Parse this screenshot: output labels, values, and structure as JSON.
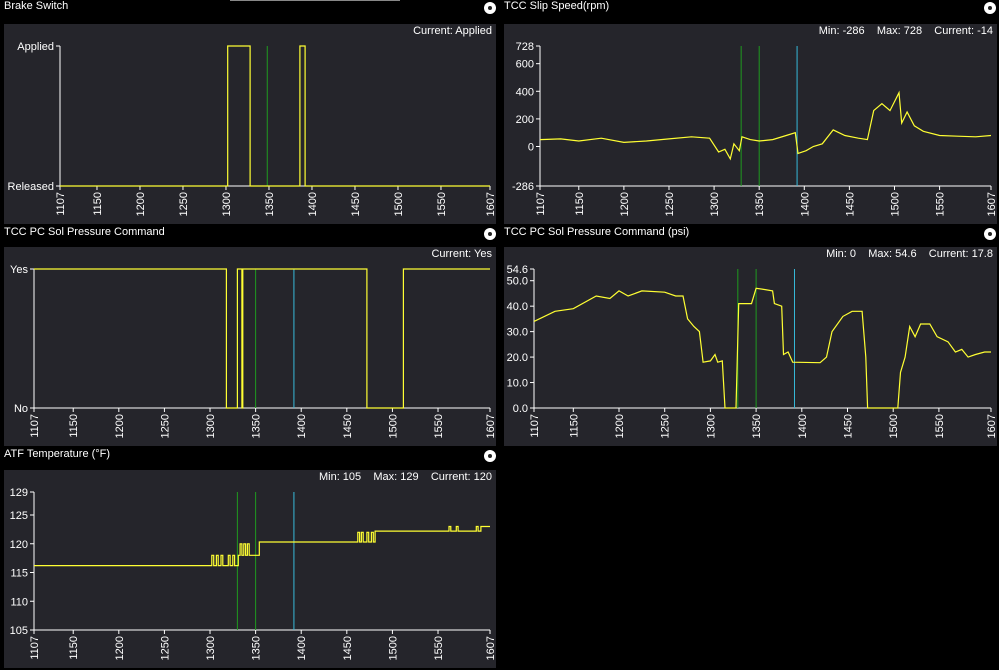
{
  "colors": {
    "panel_bg": "#25252b",
    "series": "#ffff33",
    "marker_green": "#1f9a1f",
    "marker_cyan": "#37b9d9",
    "axis": "#ffffff"
  },
  "panels": {
    "brake": {
      "title": "Brake Switch",
      "stats": "Current: Applied",
      "button_icon": "circle-button-icon"
    },
    "slip": {
      "title": "TCC Slip Speed(rpm)",
      "stats": "Min: -286    Max: 728    Current: -14",
      "button_icon": "circle-button-icon"
    },
    "pc_cmd": {
      "title": "TCC PC Sol Pressure Command",
      "stats": "Current: Yes",
      "button_icon": "circle-button-icon"
    },
    "pc_psi": {
      "title": "TCC PC Sol Pressure Command (psi)",
      "stats": "Min: 0    Max: 54.6    Current: 17.8",
      "button_icon": "circle-button-icon"
    },
    "atf": {
      "title": "ATF Temperature (°F)",
      "stats": "Min: 105    Max: 129    Current: 120",
      "button_icon": "circle-button-icon"
    }
  },
  "chart_data": [
    {
      "id": "brake",
      "type": "line",
      "title": "Brake Switch",
      "xlim": [
        1107,
        1607
      ],
      "x_ticks": [
        "1107",
        "1150",
        "1200",
        "1250",
        "1300",
        "1350",
        "1400",
        "1450",
        "1500",
        "1550",
        "1607"
      ],
      "y_ticks": [
        {
          "label": "Applied",
          "v": 1
        },
        {
          "label": "Released",
          "v": 0
        }
      ],
      "ylim": [
        0,
        1
      ],
      "markers": [
        {
          "x": 1348,
          "color": "green"
        }
      ],
      "series": [
        {
          "step": true,
          "points": [
            [
              1107,
              0
            ],
            [
              1300,
              0
            ],
            [
              1302,
              1
            ],
            [
              1326,
              1
            ],
            [
              1328,
              0
            ],
            [
              1384,
              0
            ],
            [
              1386,
              1
            ],
            [
              1390,
              1
            ],
            [
              1392,
              0
            ],
            [
              1607,
              0
            ]
          ]
        }
      ]
    },
    {
      "id": "slip",
      "type": "line",
      "title": "TCC Slip Speed(rpm)",
      "xlim": [
        1107,
        1607
      ],
      "x_ticks": [
        "1107",
        "1150",
        "1200",
        "1250",
        "1300",
        "1350",
        "1400",
        "1450",
        "1500",
        "1550",
        "1607"
      ],
      "y_ticks": [
        {
          "label": "728",
          "v": 728
        },
        {
          "label": "600",
          "v": 600
        },
        {
          "label": "400",
          "v": 400
        },
        {
          "label": "200",
          "v": 200
        },
        {
          "label": "0",
          "v": 0
        },
        {
          "label": "-286",
          "v": -286
        }
      ],
      "ylim": [
        -286,
        728
      ],
      "markers": [
        {
          "x": 1330,
          "color": "green"
        },
        {
          "x": 1350,
          "color": "green"
        },
        {
          "x": 1392,
          "color": "cyan"
        }
      ],
      "series": [
        {
          "points": [
            [
              1107,
              50
            ],
            [
              1130,
              55
            ],
            [
              1150,
              40
            ],
            [
              1175,
              60
            ],
            [
              1200,
              30
            ],
            [
              1225,
              40
            ],
            [
              1250,
              55
            ],
            [
              1275,
              70
            ],
            [
              1295,
              60
            ],
            [
              1305,
              -40
            ],
            [
              1312,
              -20
            ],
            [
              1318,
              -90
            ],
            [
              1322,
              20
            ],
            [
              1328,
              -30
            ],
            [
              1331,
              70
            ],
            [
              1340,
              50
            ],
            [
              1350,
              40
            ],
            [
              1365,
              50
            ],
            [
              1380,
              80
            ],
            [
              1390,
              100
            ],
            [
              1393,
              -50
            ],
            [
              1402,
              -30
            ],
            [
              1410,
              0
            ],
            [
              1420,
              20
            ],
            [
              1432,
              120
            ],
            [
              1445,
              80
            ],
            [
              1460,
              60
            ],
            [
              1470,
              50
            ],
            [
              1477,
              260
            ],
            [
              1486,
              310
            ],
            [
              1495,
              260
            ],
            [
              1505,
              390
            ],
            [
              1508,
              170
            ],
            [
              1514,
              250
            ],
            [
              1522,
              150
            ],
            [
              1532,
              110
            ],
            [
              1550,
              80
            ],
            [
              1570,
              75
            ],
            [
              1590,
              70
            ],
            [
              1607,
              80
            ]
          ]
        }
      ]
    },
    {
      "id": "pc_cmd",
      "type": "line",
      "title": "TCC PC Sol Pressure Command",
      "xlim": [
        1107,
        1607
      ],
      "x_ticks": [
        "1107",
        "1150",
        "1200",
        "1250",
        "1300",
        "1350",
        "1400",
        "1450",
        "1500",
        "1550",
        "1607"
      ],
      "y_ticks": [
        {
          "label": "Yes",
          "v": 1
        },
        {
          "label": "No",
          "v": 0
        }
      ],
      "ylim": [
        0,
        1
      ],
      "markers": [
        {
          "x": 1330,
          "color": "green"
        },
        {
          "x": 1350,
          "color": "green"
        },
        {
          "x": 1392,
          "color": "cyan"
        }
      ],
      "series": [
        {
          "step": true,
          "points": [
            [
              1107,
              1
            ],
            [
              1316,
              1
            ],
            [
              1318,
              0
            ],
            [
              1328,
              0
            ],
            [
              1330,
              1
            ],
            [
              1333,
              1
            ],
            [
              1335,
              0
            ],
            [
              1336,
              1
            ],
            [
              1469,
              1
            ],
            [
              1472,
              0
            ],
            [
              1508,
              0
            ],
            [
              1512,
              1
            ],
            [
              1607,
              1
            ]
          ]
        }
      ]
    },
    {
      "id": "pc_psi",
      "type": "line",
      "title": "TCC PC Sol Pressure Command (psi)",
      "xlim": [
        1107,
        1607
      ],
      "x_ticks": [
        "1107",
        "1150",
        "1200",
        "1250",
        "1300",
        "1350",
        "1400",
        "1450",
        "1500",
        "1550",
        "1607"
      ],
      "y_ticks": [
        {
          "label": "54.6",
          "v": 54.6
        },
        {
          "label": "50.0",
          "v": 50
        },
        {
          "label": "40.0",
          "v": 40
        },
        {
          "label": "30.0",
          "v": 30
        },
        {
          "label": "20.0",
          "v": 20
        },
        {
          "label": "10.0",
          "v": 10
        },
        {
          "label": "0.0",
          "v": 0
        }
      ],
      "ylim": [
        0,
        54.6
      ],
      "markers": [
        {
          "x": 1330,
          "color": "green"
        },
        {
          "x": 1350,
          "color": "green"
        },
        {
          "x": 1392,
          "color": "cyan"
        }
      ],
      "series": [
        {
          "points": [
            [
              1107,
              34
            ],
            [
              1130,
              38
            ],
            [
              1150,
              39
            ],
            [
              1175,
              44
            ],
            [
              1190,
              43
            ],
            [
              1200,
              46
            ],
            [
              1210,
              44
            ],
            [
              1225,
              46
            ],
            [
              1250,
              45.5
            ],
            [
              1262,
              44
            ],
            [
              1270,
              44
            ],
            [
              1275,
              35
            ],
            [
              1282,
              32
            ],
            [
              1288,
              30
            ],
            [
              1292,
              18
            ],
            [
              1300,
              18.5
            ],
            [
              1305,
              21
            ],
            [
              1308,
              18
            ],
            [
              1313,
              18.5
            ],
            [
              1316,
              0
            ],
            [
              1328,
              0
            ],
            [
              1331,
              41
            ],
            [
              1340,
              41
            ],
            [
              1345,
              41
            ],
            [
              1350,
              47
            ],
            [
              1360,
              46.5
            ],
            [
              1368,
              46
            ],
            [
              1370,
              41
            ],
            [
              1378,
              40
            ],
            [
              1380,
              21
            ],
            [
              1385,
              22
            ],
            [
              1390,
              18
            ],
            [
              1420,
              17.8
            ],
            [
              1427,
              20
            ],
            [
              1433,
              30
            ],
            [
              1445,
              36
            ],
            [
              1455,
              38
            ],
            [
              1466,
              38
            ],
            [
              1470,
              20
            ],
            [
              1472,
              0
            ],
            [
              1505,
              0
            ],
            [
              1508,
              14
            ],
            [
              1513,
              20
            ],
            [
              1518,
              32
            ],
            [
              1524,
              28
            ],
            [
              1530,
              33
            ],
            [
              1540,
              33
            ],
            [
              1548,
              28
            ],
            [
              1560,
              26
            ],
            [
              1568,
              22
            ],
            [
              1575,
              23
            ],
            [
              1582,
              20
            ],
            [
              1590,
              21
            ],
            [
              1600,
              22
            ],
            [
              1607,
              22
            ]
          ]
        }
      ]
    },
    {
      "id": "atf",
      "type": "line",
      "title": "ATF Temperature (°F)",
      "xlim": [
        1107,
        1607
      ],
      "x_ticks": [
        "1107",
        "1150",
        "1200",
        "1250",
        "1300",
        "1350",
        "1400",
        "1450",
        "1500",
        "1550",
        "1607"
      ],
      "y_ticks": [
        {
          "label": "129",
          "v": 129
        },
        {
          "label": "125",
          "v": 125
        },
        {
          "label": "120",
          "v": 120
        },
        {
          "label": "115",
          "v": 115
        },
        {
          "label": "110",
          "v": 110
        },
        {
          "label": "105",
          "v": 105
        }
      ],
      "ylim": [
        105,
        129
      ],
      "markers": [
        {
          "x": 1330,
          "color": "green"
        },
        {
          "x": 1350,
          "color": "green"
        },
        {
          "x": 1392,
          "color": "cyan"
        }
      ],
      "series": [
        {
          "step": true,
          "points": [
            [
              1107,
              116.2
            ],
            [
              1300,
              116.2
            ],
            [
              1302,
              118
            ],
            [
              1304,
              116.2
            ],
            [
              1307,
              118
            ],
            [
              1309,
              116.2
            ],
            [
              1312,
              118
            ],
            [
              1314,
              116.2
            ],
            [
              1320,
              118
            ],
            [
              1322,
              116.2
            ],
            [
              1325,
              118
            ],
            [
              1327,
              116.2
            ],
            [
              1331,
              118
            ],
            [
              1333,
              120
            ],
            [
              1335,
              118
            ],
            [
              1337,
              120
            ],
            [
              1339,
              118
            ],
            [
              1341,
              120
            ],
            [
              1343,
              118
            ],
            [
              1352,
              118
            ],
            [
              1354,
              120.3
            ],
            [
              1460,
              120.3
            ],
            [
              1462,
              122
            ],
            [
              1464,
              120.3
            ],
            [
              1466,
              122
            ],
            [
              1468,
              120.3
            ],
            [
              1472,
              122
            ],
            [
              1474,
              120.3
            ],
            [
              1477,
              122
            ],
            [
              1479,
              120.3
            ],
            [
              1481,
              122.2
            ],
            [
              1560,
              122.2
            ],
            [
              1562,
              123
            ],
            [
              1564,
              122.2
            ],
            [
              1570,
              123
            ],
            [
              1572,
              122.2
            ],
            [
              1590,
              122.2
            ],
            [
              1592,
              123
            ],
            [
              1594,
              122.2
            ],
            [
              1597,
              123
            ],
            [
              1607,
              123
            ]
          ]
        }
      ]
    }
  ]
}
